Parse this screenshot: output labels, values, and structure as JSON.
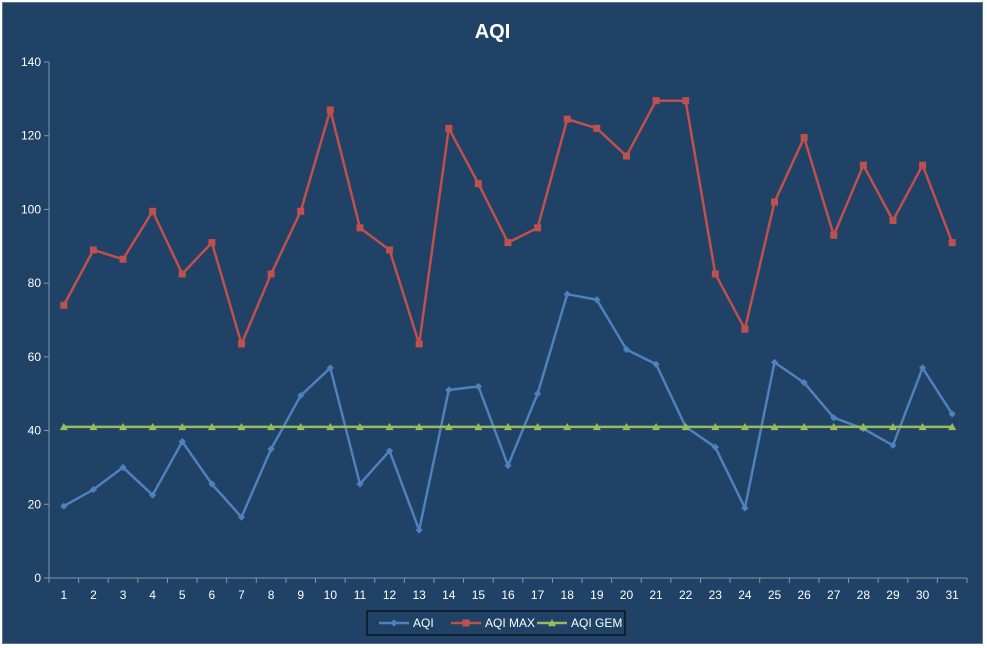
{
  "chart_data": {
    "type": "line",
    "title": "AQI",
    "xlabel": "",
    "ylabel": "",
    "ylim": [
      0,
      140
    ],
    "yticks": [
      0,
      20,
      40,
      60,
      80,
      100,
      120,
      140
    ],
    "grid": false,
    "legend_position": "bottom",
    "x": [
      1,
      2,
      3,
      4,
      5,
      6,
      7,
      8,
      9,
      10,
      11,
      12,
      13,
      14,
      15,
      16,
      17,
      18,
      19,
      20,
      21,
      22,
      23,
      24,
      25,
      26,
      27,
      28,
      29,
      30,
      31
    ],
    "series": [
      {
        "name": "AQI",
        "color": "#4f81bd",
        "marker": "diamond",
        "values": [
          19.5,
          24,
          30,
          22.5,
          37,
          25.5,
          16.5,
          35,
          49.5,
          57,
          25.5,
          34.5,
          13,
          51,
          52,
          30.5,
          50,
          77,
          75.5,
          62,
          58,
          41,
          35.5,
          19,
          58.5,
          53,
          43.5,
          40.5,
          36,
          57,
          44.5
        ]
      },
      {
        "name": "AQI MAX",
        "color": "#c0504d",
        "marker": "square",
        "values": [
          74,
          89,
          86.5,
          99.5,
          82.5,
          91,
          63.5,
          82.5,
          99.5,
          127,
          95,
          89,
          63.5,
          122,
          107,
          91,
          95,
          124.5,
          122,
          114.5,
          129.5,
          129.5,
          82.5,
          67.5,
          102,
          119.5,
          93,
          112,
          97,
          112,
          91
        ]
      },
      {
        "name": "AQI GEM",
        "color": "#9bbb59",
        "marker": "triangle",
        "values": [
          41,
          41,
          41,
          41,
          41,
          41,
          41,
          41,
          41,
          41,
          41,
          41,
          41,
          41,
          41,
          41,
          41,
          41,
          41,
          41,
          41,
          41,
          41,
          41,
          41,
          41,
          41,
          41,
          41,
          41,
          41
        ]
      }
    ]
  }
}
